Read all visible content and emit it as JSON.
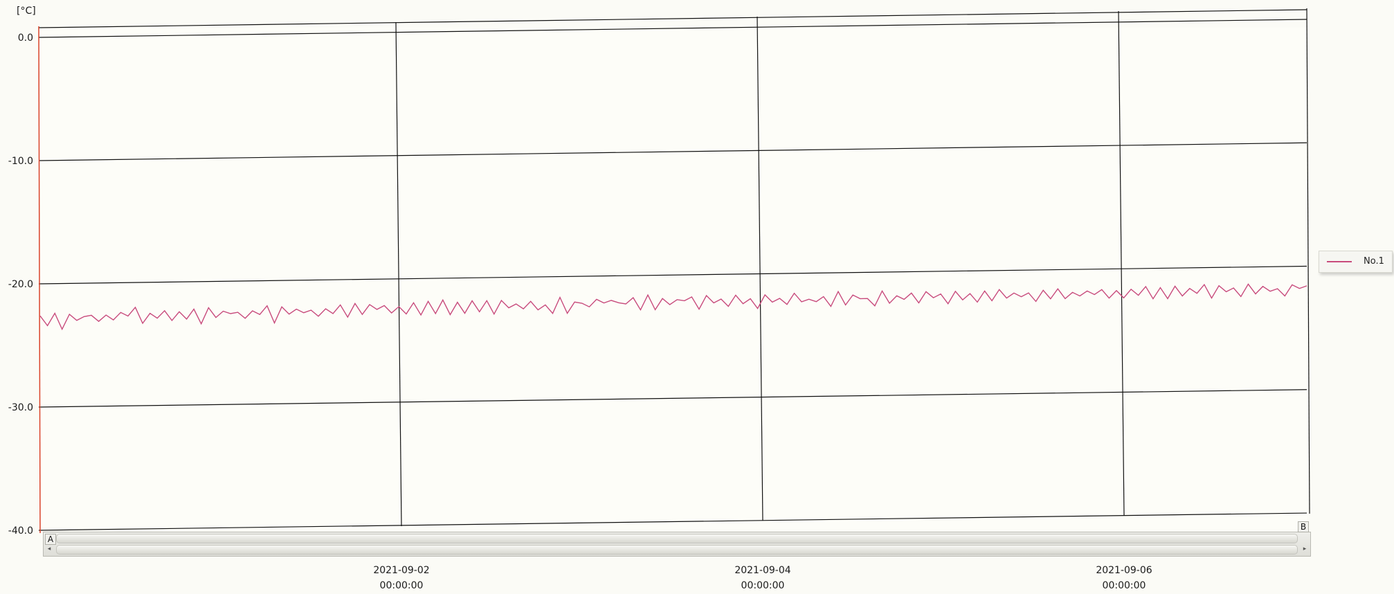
{
  "chart_data": {
    "type": "line",
    "unit_label": "[°C]",
    "y_ticks": [
      "0.0",
      "-10.0",
      "-20.0",
      "-30.0",
      "-40.0"
    ],
    "ylim": [
      -40,
      0
    ],
    "x_ticks": [
      {
        "date": "2021-09-02",
        "time": "00:00:00"
      },
      {
        "date": "2021-09-04",
        "time": "00:00:00"
      },
      {
        "date": "2021-09-06",
        "time": "00:00:00"
      }
    ],
    "grid": true,
    "legend_position": "right",
    "series": [
      {
        "name": "No.1",
        "color": "#c84b7c",
        "values": [
          -22.6,
          -23.4,
          -22.4,
          -23.7,
          -22.5,
          -23.0,
          -22.7,
          -22.6,
          -23.1,
          -22.6,
          -23.0,
          -22.4,
          -22.7,
          -22.0,
          -23.3,
          -22.5,
          -22.9,
          -22.3,
          -23.1,
          -22.4,
          -23.0,
          -22.2,
          -23.4,
          -22.1,
          -22.9,
          -22.4,
          -22.6,
          -22.5,
          -23.0,
          -22.4,
          -22.7,
          -22.0,
          -23.4,
          -22.1,
          -22.7,
          -22.3,
          -22.6,
          -22.4,
          -22.9,
          -22.3,
          -22.7,
          -22.0,
          -23.0,
          -21.9,
          -22.8,
          -22.0,
          -22.4,
          -22.1,
          -22.7,
          -22.2,
          -22.8,
          -21.9,
          -22.9,
          -21.8,
          -22.8,
          -21.7,
          -22.9,
          -21.9,
          -22.8,
          -21.8,
          -22.7,
          -21.8,
          -22.9,
          -21.8,
          -22.4,
          -22.1,
          -22.5,
          -21.9,
          -22.6,
          -22.2,
          -22.9,
          -21.6,
          -22.9,
          -22.0,
          -22.1,
          -22.4,
          -21.8,
          -22.1,
          -21.9,
          -22.1,
          -22.2,
          -21.7,
          -22.7,
          -21.5,
          -22.7,
          -21.8,
          -22.3,
          -21.9,
          -22.0,
          -21.7,
          -22.7,
          -21.6,
          -22.2,
          -21.9,
          -22.5,
          -21.6,
          -22.3,
          -21.9,
          -22.7,
          -21.6,
          -22.2,
          -21.9,
          -22.4,
          -21.5,
          -22.2,
          -22.0,
          -22.2,
          -21.8,
          -22.6,
          -21.4,
          -22.5,
          -21.7,
          -22.0,
          -22.0,
          -22.6,
          -21.4,
          -22.4,
          -21.8,
          -22.1,
          -21.6,
          -22.4,
          -21.5,
          -22.0,
          -21.7,
          -22.5,
          -21.5,
          -22.2,
          -21.7,
          -22.4,
          -21.5,
          -22.3,
          -21.4,
          -22.1,
          -21.7,
          -22.0,
          -21.7,
          -22.4,
          -21.5,
          -22.2,
          -21.4,
          -22.2,
          -21.7,
          -22.0,
          -21.6,
          -21.9,
          -21.5,
          -22.2,
          -21.6,
          -22.2,
          -21.5,
          -22.0,
          -21.3,
          -22.3,
          -21.4,
          -22.3,
          -21.3,
          -22.1,
          -21.5,
          -21.9,
          -21.2,
          -22.3,
          -21.3,
          -21.8,
          -21.5,
          -22.2,
          -21.2,
          -22.0,
          -21.4,
          -21.8,
          -21.6,
          -22.2,
          -21.3,
          -21.6,
          -21.4
        ]
      }
    ]
  }
}
